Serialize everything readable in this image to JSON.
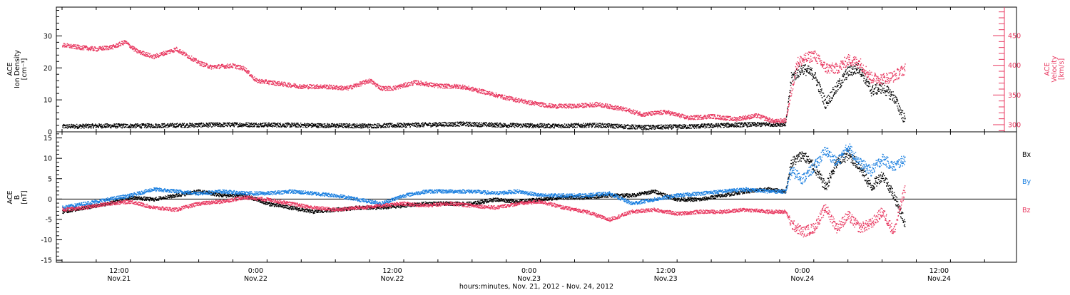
{
  "colors": {
    "black": "#000000",
    "pink": "#e8375f",
    "blue": "#1a7fe0"
  },
  "x_axis": {
    "label": "hours:minutes, Nov. 21, 2012 - Nov. 24, 2012",
    "range_hours": [
      6.5,
      90.8
    ],
    "ticks": [
      {
        "hour": 12,
        "time": "12:00",
        "date": "Nov.21"
      },
      {
        "hour": 24,
        "time": "0:00",
        "date": "Nov.22"
      },
      {
        "hour": 36,
        "time": "12:00",
        "date": "Nov.22"
      },
      {
        "hour": 48,
        "time": "0:00",
        "date": "Nov.23"
      },
      {
        "hour": 60,
        "time": "12:00",
        "date": "Nov.23"
      },
      {
        "hour": 72,
        "time": "0:00",
        "date": "Nov.24"
      },
      {
        "hour": 84,
        "time": "12:00",
        "date": "Nov.24"
      }
    ]
  },
  "chart_data": [
    {
      "type": "scatter",
      "xlabel": "hours:minutes, Nov. 21, 2012 - Nov. 24, 2012",
      "left_axis": {
        "label_lines": [
          "ACE",
          "Ion Density",
          "[cm⁻³]"
        ],
        "ylim": [
          0,
          39
        ],
        "ticks": [
          0,
          10,
          20,
          30
        ]
      },
      "right_axis": {
        "label_lines": [
          "ACE",
          "Velocity",
          "[km/s]"
        ],
        "ylim": [
          288,
          498
        ],
        "ticks": [
          300,
          350,
          400,
          450
        ]
      },
      "series": [
        {
          "axis": "left",
          "color": "#000000",
          "x": [
            7,
            10,
            14,
            18,
            22,
            26,
            30,
            34,
            38,
            42,
            46,
            50,
            54,
            58,
            62,
            66,
            69,
            70.5,
            71,
            72,
            73,
            74,
            75,
            76,
            77,
            78,
            79,
            80,
            81
          ],
          "y": [
            1.8,
            2.0,
            2.0,
            2.2,
            2.4,
            2.3,
            2.1,
            2.0,
            2.3,
            2.6,
            2.2,
            2.0,
            2.2,
            1.5,
            1.8,
            2.3,
            2.5,
            2.6,
            17,
            20,
            18,
            9,
            14,
            19,
            20,
            13,
            14,
            11,
            3.5
          ]
        },
        {
          "axis": "right",
          "color": "#e8375f",
          "x": [
            7,
            8,
            10,
            11.5,
            12.5,
            13.5,
            15,
            17,
            19,
            20,
            22,
            23,
            24,
            26,
            28,
            30,
            32,
            34,
            35,
            36,
            38,
            40,
            42,
            44,
            46,
            48,
            50,
            52,
            54,
            56,
            58,
            60,
            62,
            64,
            66,
            68,
            69.5,
            70.5,
            71.5,
            72,
            73,
            74,
            75,
            76,
            77,
            78,
            79,
            80,
            81
          ],
          "y": [
            435,
            432,
            428,
            432,
            440,
            425,
            415,
            428,
            405,
            398,
            400,
            395,
            375,
            370,
            365,
            365,
            362,
            375,
            362,
            362,
            372,
            366,
            365,
            356,
            346,
            338,
            332,
            332,
            335,
            328,
            318,
            322,
            312,
            315,
            310,
            316,
            306,
            308,
            405,
            410,
            418,
            396,
            395,
            410,
            405,
            380,
            378,
            382,
            395
          ]
        }
      ]
    },
    {
      "type": "scatter",
      "xlabel": "hours:minutes, Nov. 21, 2012 - Nov. 24, 2012",
      "left_axis": {
        "label_lines": [
          "ACE",
          "B",
          "[nT]"
        ],
        "ylim": [
          -15.5,
          16.5
        ],
        "ticks": [
          -15,
          -10,
          -5,
          0,
          5,
          10,
          15
        ]
      },
      "legend_placement": "right",
      "series": [
        {
          "name": "Bx",
          "color": "#000000",
          "x": [
            7,
            9,
            11,
            13,
            15,
            17,
            19,
            21,
            23,
            25,
            27,
            29,
            31,
            33,
            35,
            37,
            39,
            41,
            43,
            45,
            47,
            49,
            51,
            53,
            55,
            57,
            59,
            61,
            63,
            65,
            67,
            69,
            70.5,
            71,
            72,
            73,
            74,
            75,
            76,
            77,
            78,
            79,
            80,
            81
          ],
          "y": [
            -3,
            -2,
            -1,
            0.5,
            0,
            1,
            2,
            1,
            1,
            -1,
            -2,
            -3,
            -2.5,
            -2,
            -2,
            -1.5,
            -1,
            -1,
            -1,
            0,
            -0.5,
            0,
            0.5,
            0.5,
            1,
            1,
            2,
            0,
            0,
            1,
            2,
            2.5,
            2,
            9,
            11,
            8,
            3,
            9,
            11,
            8,
            3,
            6,
            1,
            -6
          ]
        },
        {
          "name": "By",
          "color": "#1a7fe0",
          "x": [
            7,
            9,
            11,
            13,
            15,
            17,
            19,
            21,
            23,
            25,
            27,
            29,
            31,
            33,
            35,
            37,
            39,
            41,
            43,
            45,
            47,
            49,
            51,
            53,
            55,
            57,
            59,
            61,
            63,
            65,
            67,
            69,
            70.5,
            71,
            72,
            73,
            74,
            75,
            76,
            77,
            78,
            79,
            80,
            81
          ],
          "y": [
            -2,
            -1,
            0,
            1,
            2.5,
            2,
            1.5,
            2,
            1.5,
            1.5,
            2,
            1.5,
            1,
            0,
            -1,
            1,
            2,
            2,
            2,
            1.5,
            2,
            1,
            1,
            1,
            1.5,
            -1,
            0,
            1,
            1.5,
            2,
            2.5,
            2,
            2,
            7,
            5,
            8,
            12,
            9,
            13,
            9,
            7,
            10,
            8,
            10
          ]
        },
        {
          "name": "Bz",
          "color": "#e8375f",
          "x": [
            7,
            9,
            11,
            13,
            15,
            17,
            19,
            21,
            23,
            25,
            27,
            29,
            31,
            33,
            35,
            37,
            39,
            41,
            43,
            45,
            47,
            49,
            51,
            53,
            55,
            57,
            59,
            61,
            63,
            65,
            67,
            69,
            70.5,
            71,
            72,
            73,
            74,
            75,
            76,
            77,
            78,
            79,
            80,
            81
          ],
          "y": [
            -2.5,
            -2,
            -1,
            -0.5,
            -2,
            -2.5,
            -1,
            -0.5,
            0.5,
            0,
            -1,
            -2,
            -2.5,
            -2,
            -1.5,
            -1,
            -1.5,
            -1,
            -1.5,
            -2,
            -1,
            -0.5,
            -2,
            -3,
            -5,
            -3,
            -2.5,
            -3.5,
            -3,
            -3,
            -2.5,
            -3,
            -3,
            -6,
            -8,
            -7,
            -2,
            -7,
            -4,
            -7,
            -6,
            -3,
            -8,
            3
          ]
        }
      ]
    }
  ]
}
